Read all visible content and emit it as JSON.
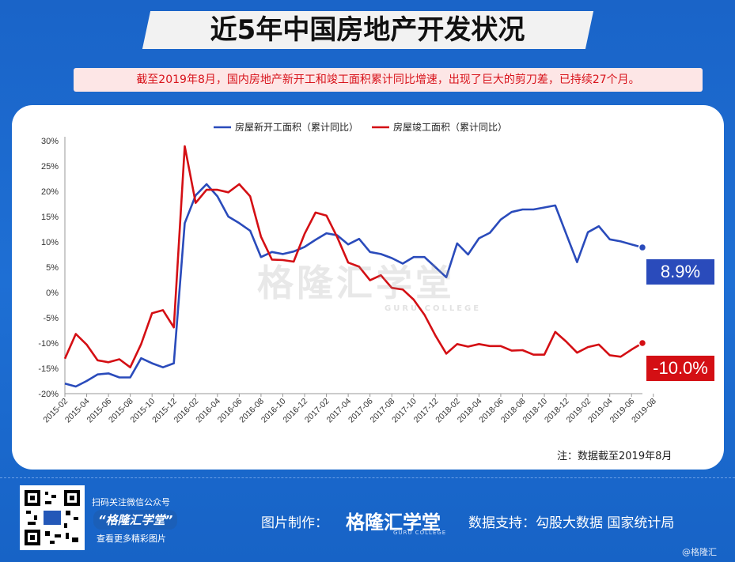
{
  "page": {
    "title": "近5年中国房地产开发状况",
    "subtitle": "截至2019年8月，国内房地产新开工和竣工面积累计同比增速，出现了巨大的剪刀差，已持续27个月。",
    "note": "注：数据截至2019年8月",
    "badge_blue": "8.9%",
    "badge_red": "-10.0%",
    "watermark": "格隆汇学堂",
    "watermark_sub": "GURU COLLEGE",
    "footer": {
      "follow": "扫码关注微信公众号",
      "account": "“格隆汇学堂”",
      "more": "查看更多精彩图片",
      "made_by": "图片制作：",
      "brand": "格隆汇学堂",
      "brand_sub": "GURU COLLEGE",
      "support": "数据支持：勾股大数据  国家统计局",
      "corner": "@格隆汇"
    }
  },
  "chart_data": {
    "type": "line",
    "ylim": [
      -20,
      30
    ],
    "yticks": [
      "30%",
      "25%",
      "20%",
      "15%",
      "10%",
      "5%",
      "0%",
      "-5%",
      "-10%",
      "-15%",
      "-20%"
    ],
    "x_tick_labels": [
      "2015-02",
      "2015-04",
      "2015-06",
      "2015-08",
      "2015-10",
      "2015-12",
      "2016-02",
      "2016-04",
      "2016-06",
      "2016-08",
      "2016-10",
      "2016-12",
      "2017-02",
      "2017-04",
      "2017-06",
      "2017-08",
      "2017-10",
      "2017-12",
      "2018-02",
      "2018-04",
      "2018-06",
      "2018-08",
      "2018-10",
      "2018-12",
      "2019-02",
      "2019-04",
      "2019-06",
      "2019-08"
    ],
    "series": [
      {
        "name": "房屋新开工面积（累计同比）",
        "color": "#2a4bbb",
        "values": [
          -18,
          -18.6,
          -17.5,
          -16.2,
          -16.0,
          -16.8,
          -16.8,
          -13.0,
          -14.0,
          -14.8,
          -14.0,
          13.7,
          19.2,
          21.4,
          19.0,
          15.0,
          13.7,
          12.2,
          7.0,
          8.0,
          7.6,
          8.1,
          9.0,
          10.4,
          11.7,
          11.3,
          9.5,
          10.6,
          8.0,
          7.6,
          6.8,
          5.7,
          7.0,
          7.0,
          5.0,
          3.0,
          9.7,
          7.5,
          10.7,
          11.8,
          14.4,
          15.9,
          16.4,
          16.4,
          16.8,
          17.2,
          11.6,
          6.0,
          11.9,
          13.1,
          10.5,
          10.1,
          9.5,
          8.9
        ]
      },
      {
        "name": "房屋竣工面积（累计同比）",
        "color": "#d40f14",
        "values": [
          -13.1,
          -8.2,
          -10.3,
          -13.4,
          -13.8,
          -13.2,
          -14.8,
          -10.2,
          -4.1,
          -3.5,
          -6.9,
          28.9,
          17.7,
          20.3,
          20.3,
          19.8,
          21.4,
          19.0,
          11.0,
          6.5,
          6.4,
          6.1,
          11.6,
          15.8,
          15.2,
          10.9,
          5.9,
          5.1,
          2.4,
          3.4,
          0.9,
          0.6,
          -1.4,
          -4.4,
          -8.5,
          -12.1,
          -10.2,
          -10.7,
          -10.2,
          -10.6,
          -10.6,
          -11.5,
          -11.4,
          -12.3,
          -12.3,
          -7.8,
          -9.7,
          -11.9,
          -10.8,
          -10.3,
          -12.4,
          -12.7,
          -11.3,
          -10.0
        ]
      }
    ]
  }
}
